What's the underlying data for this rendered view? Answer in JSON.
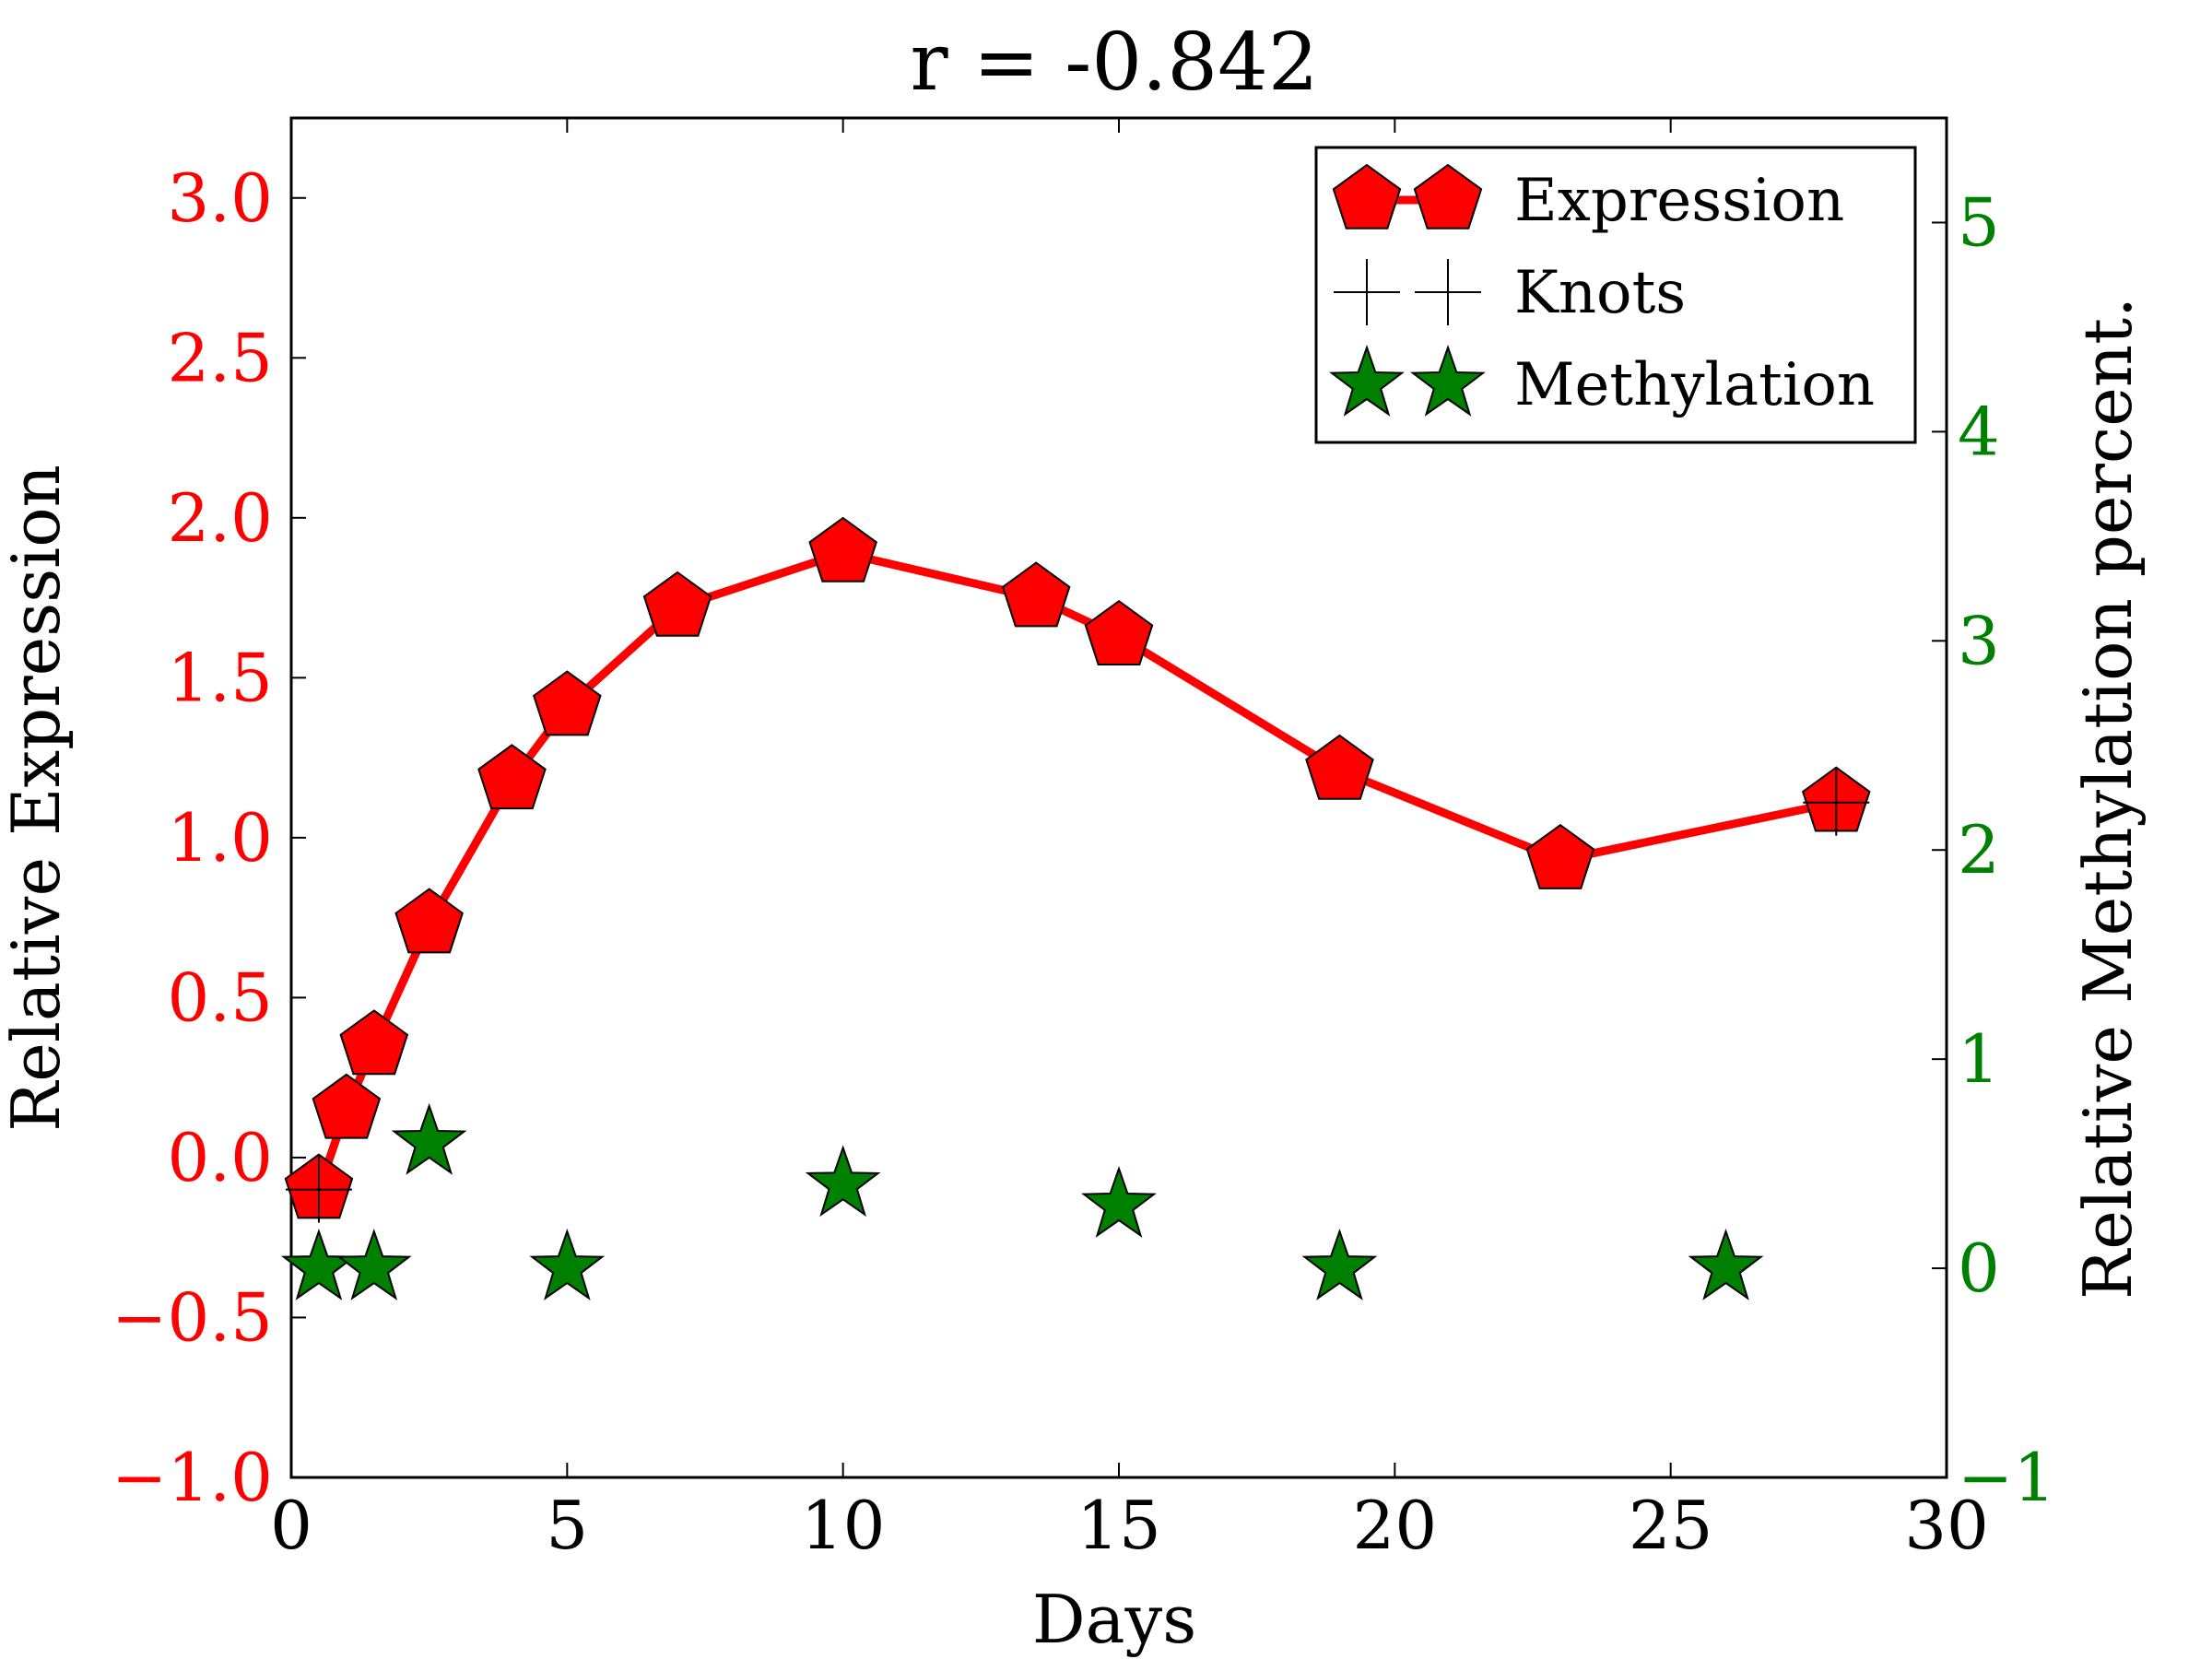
{
  "chart_data": {
    "type": "line",
    "title": "r = -0.842",
    "xlabel": "Days",
    "ylabel_left": "Relative Expression",
    "ylabel_right": "Relative Methylation percent.",
    "xlim": [
      0,
      30
    ],
    "ylim_left": [
      -1.0,
      3.25
    ],
    "ylim_right": [
      -1,
      5.5
    ],
    "x_ticks": [
      {
        "value": 0,
        "label": "0"
      },
      {
        "value": 5,
        "label": "5"
      },
      {
        "value": 10,
        "label": "10"
      },
      {
        "value": 15,
        "label": "15"
      },
      {
        "value": 20,
        "label": "20"
      },
      {
        "value": 25,
        "label": "25"
      },
      {
        "value": 30,
        "label": "30"
      }
    ],
    "y_ticks_left": [
      {
        "value": -1.0,
        "label": "−1.0"
      },
      {
        "value": -0.5,
        "label": "−0.5"
      },
      {
        "value": 0.0,
        "label": "0.0"
      },
      {
        "value": 0.5,
        "label": "0.5"
      },
      {
        "value": 1.0,
        "label": "1.0"
      },
      {
        "value": 1.5,
        "label": "1.5"
      },
      {
        "value": 2.0,
        "label": "2.0"
      },
      {
        "value": 2.5,
        "label": "2.5"
      },
      {
        "value": 3.0,
        "label": "3.0"
      }
    ],
    "y_ticks_right": [
      {
        "value": -1,
        "label": "−1"
      },
      {
        "value": 0,
        "label": "0"
      },
      {
        "value": 1,
        "label": "1"
      },
      {
        "value": 2,
        "label": "2"
      },
      {
        "value": 3,
        "label": "3"
      },
      {
        "value": 4,
        "label": "4"
      },
      {
        "value": 5,
        "label": "5"
      }
    ],
    "legend": {
      "position": "upper-right",
      "entries": [
        "Expression",
        "Knots",
        "Methylation"
      ]
    },
    "series": [
      {
        "name": "Expression",
        "axis": "left",
        "marker": "pentagon",
        "line": true,
        "color": "#ff0000",
        "x": [
          0.5,
          1,
          1.5,
          2.5,
          4,
          5,
          7,
          10,
          13.5,
          15,
          19,
          23,
          28
        ],
        "y": [
          -0.1,
          0.15,
          0.35,
          0.73,
          1.18,
          1.41,
          1.72,
          1.89,
          1.75,
          1.63,
          1.21,
          0.93,
          1.11
        ]
      },
      {
        "name": "Knots",
        "axis": "left",
        "marker": "plus",
        "line": false,
        "color": "#000000",
        "x": [
          0.5,
          28
        ],
        "y": [
          -0.1,
          1.11
        ]
      },
      {
        "name": "Methylation",
        "axis": "right",
        "marker": "star",
        "line": false,
        "color": "#008000",
        "x": [
          0.5,
          1.5,
          2.5,
          5,
          10,
          15,
          19,
          26
        ],
        "y": [
          0.0,
          0.0,
          0.6,
          0.0,
          0.4,
          0.3,
          0.0,
          0.0
        ]
      }
    ],
    "colors": {
      "left_axis": "#ff0000",
      "right_axis": "#008000",
      "text": "#000000"
    }
  }
}
